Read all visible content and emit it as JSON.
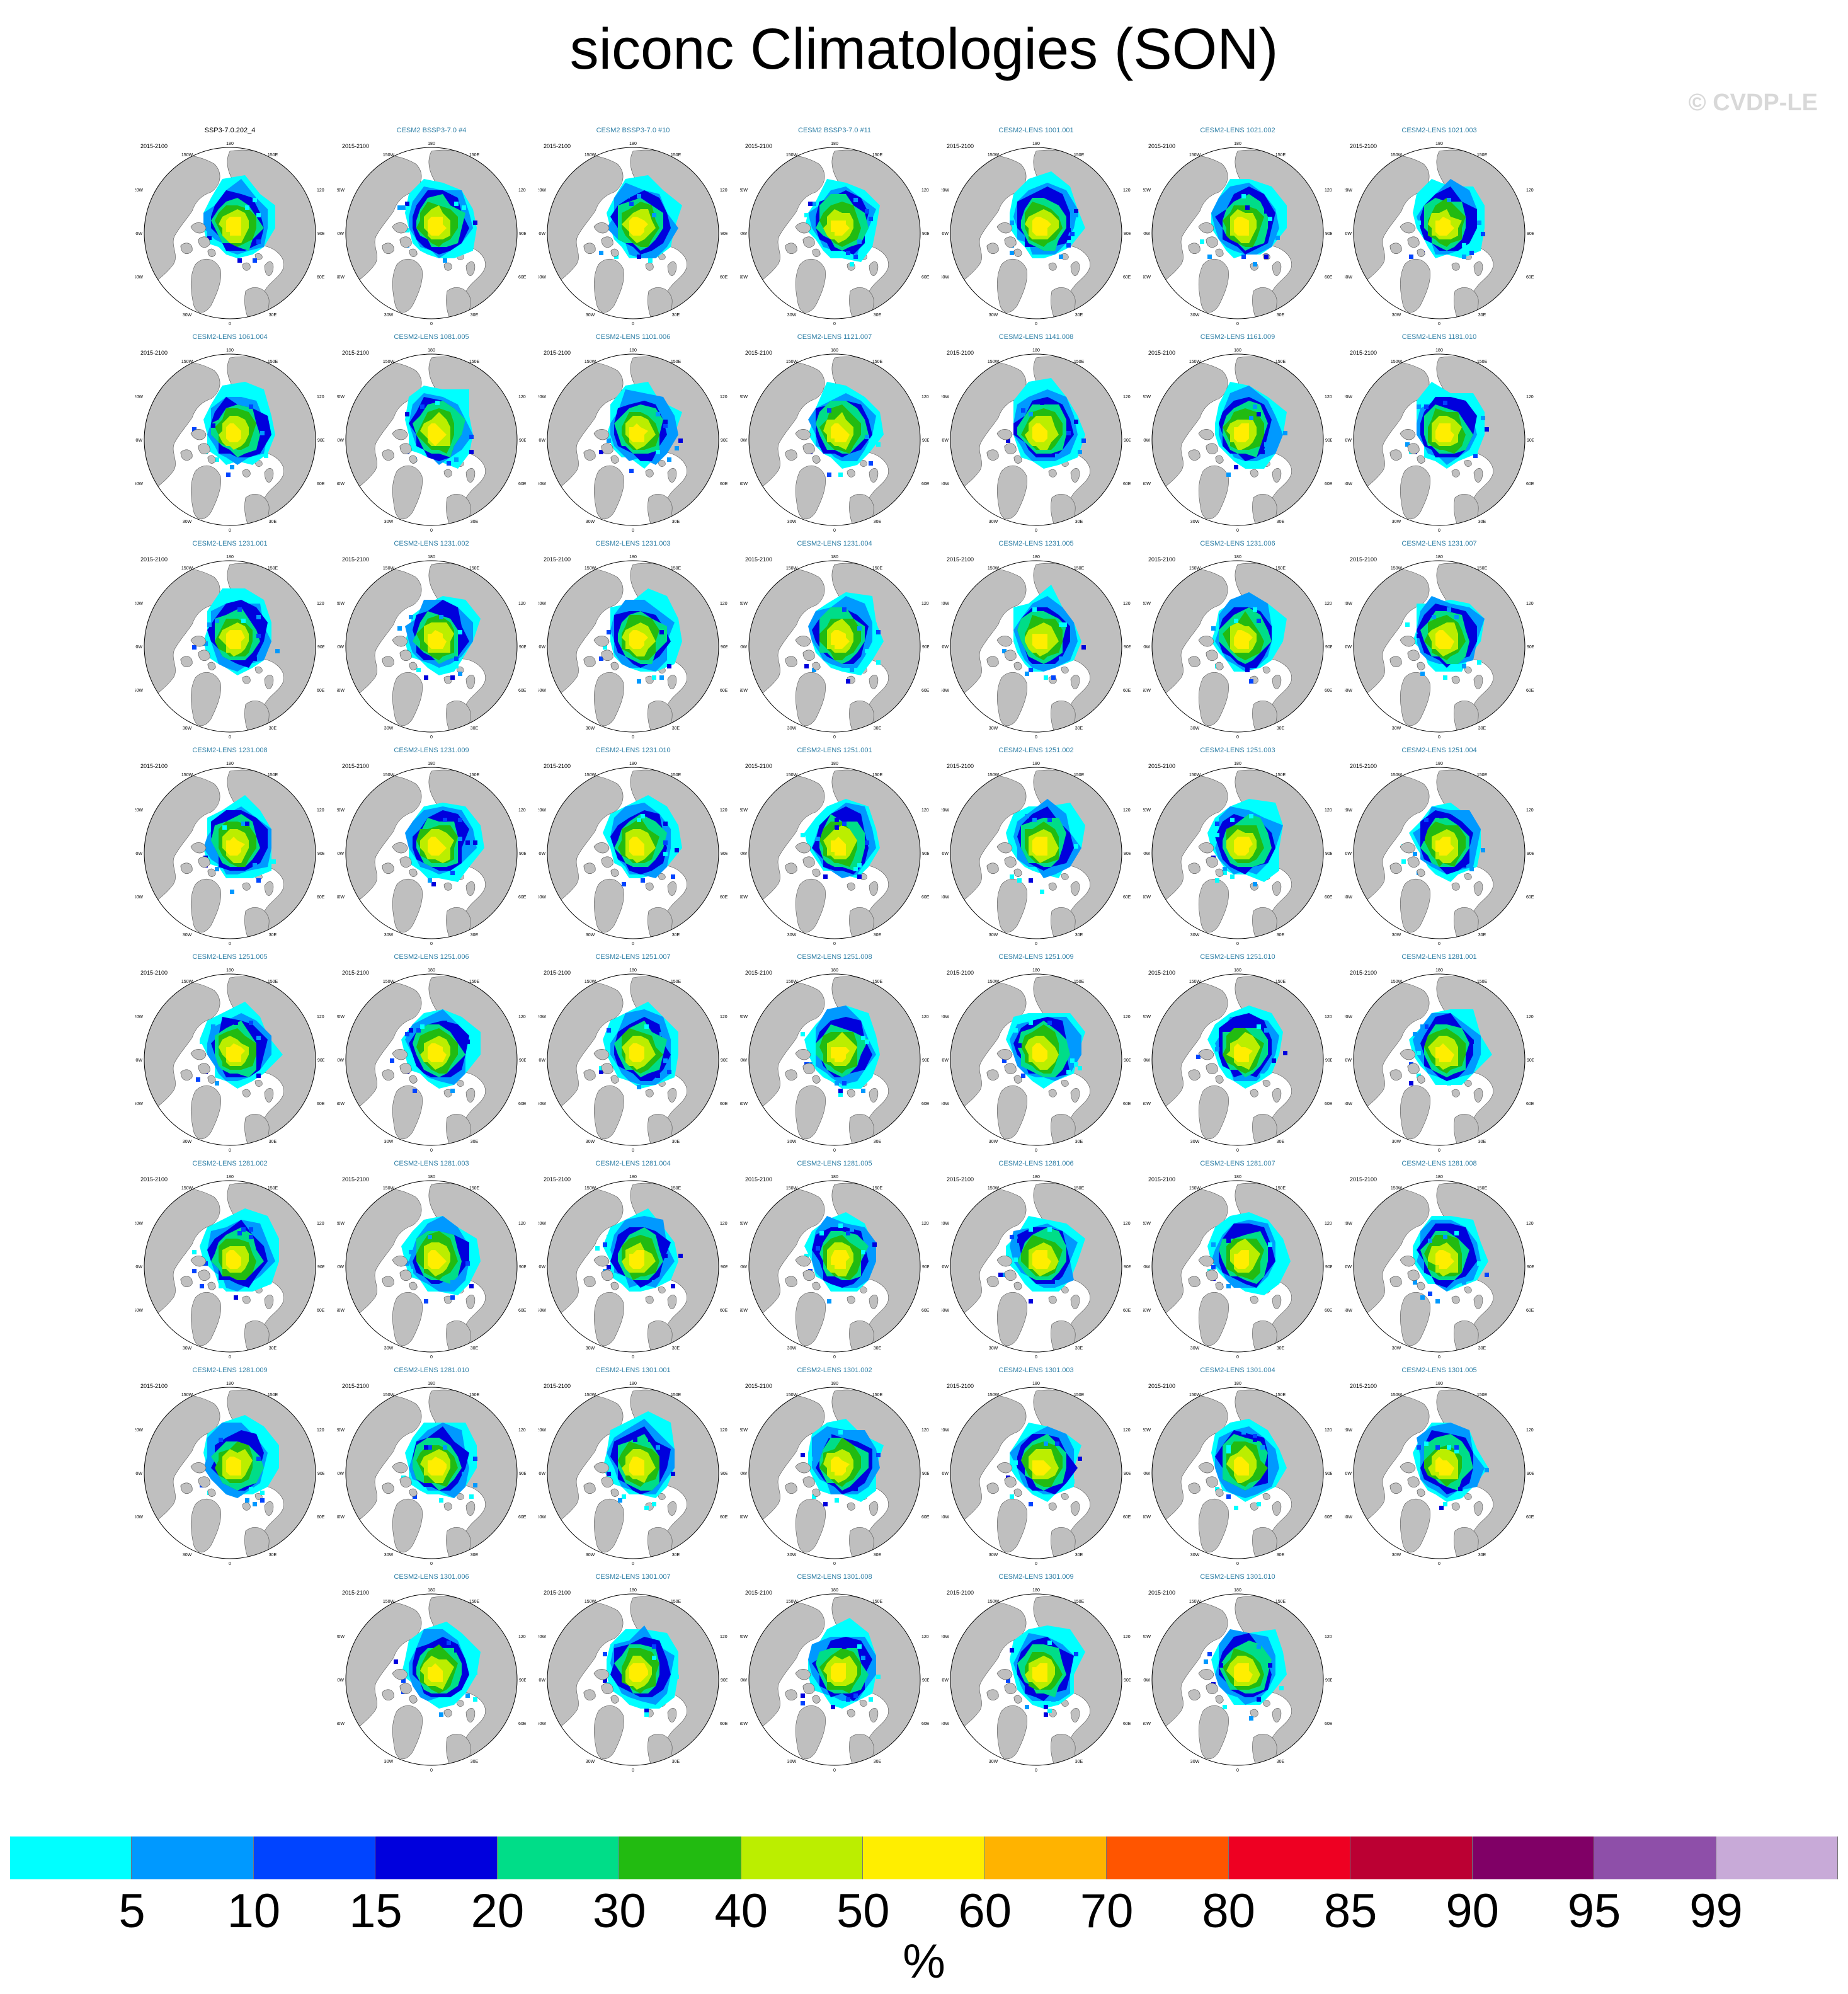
{
  "figure": {
    "title": "siconc Climatologies (SON)",
    "watermark": "© CVDP-LE",
    "period": "2015-2100"
  },
  "map_labels": {
    "top": "180",
    "bottom": "0",
    "upper_left": "150W",
    "upper_right": "150E",
    "left_upper": "120W",
    "right_upper": "120E",
    "left": "90W",
    "right": "90E",
    "left_lower": "60W",
    "right_lower": "60E",
    "lower_left": "30W",
    "lower_right": "30E"
  },
  "panels": [
    {
      "title": "SSP3-7.0.202_4",
      "obs": true
    },
    {
      "title": "CESM2 BSSP3-7.0 #4"
    },
    {
      "title": "CESM2 BSSP3-7.0 #10"
    },
    {
      "title": "CESM2 BSSP3-7.0 #11"
    },
    {
      "title": "CESM2-LENS 1001.001"
    },
    {
      "title": "CESM2-LENS 1021.002"
    },
    {
      "title": "CESM2-LENS 1021.003"
    },
    {
      "title": "CESM2-LENS 1061.004"
    },
    {
      "title": "CESM2-LENS 1081.005"
    },
    {
      "title": "CESM2-LENS 1101.006"
    },
    {
      "title": "CESM2-LENS 1121.007"
    },
    {
      "title": "CESM2-LENS 1141.008"
    },
    {
      "title": "CESM2-LENS 1161.009"
    },
    {
      "title": "CESM2-LENS 1181.010"
    },
    {
      "title": "CESM2-LENS 1231.001"
    },
    {
      "title": "CESM2-LENS 1231.002"
    },
    {
      "title": "CESM2-LENS 1231.003"
    },
    {
      "title": "CESM2-LENS 1231.004"
    },
    {
      "title": "CESM2-LENS 1231.005"
    },
    {
      "title": "CESM2-LENS 1231.006"
    },
    {
      "title": "CESM2-LENS 1231.007"
    },
    {
      "title": "CESM2-LENS 1231.008"
    },
    {
      "title": "CESM2-LENS 1231.009"
    },
    {
      "title": "CESM2-LENS 1231.010"
    },
    {
      "title": "CESM2-LENS 1251.001"
    },
    {
      "title": "CESM2-LENS 1251.002"
    },
    {
      "title": "CESM2-LENS 1251.003"
    },
    {
      "title": "CESM2-LENS 1251.004"
    },
    {
      "title": "CESM2-LENS 1251.005"
    },
    {
      "title": "CESM2-LENS 1251.006"
    },
    {
      "title": "CESM2-LENS 1251.007"
    },
    {
      "title": "CESM2-LENS 1251.008"
    },
    {
      "title": "CESM2-LENS 1251.009"
    },
    {
      "title": "CESM2-LENS 1251.010"
    },
    {
      "title": "CESM2-LENS 1281.001"
    },
    {
      "title": "CESM2-LENS 1281.002"
    },
    {
      "title": "CESM2-LENS 1281.003"
    },
    {
      "title": "CESM2-LENS 1281.004"
    },
    {
      "title": "CESM2-LENS 1281.005"
    },
    {
      "title": "CESM2-LENS 1281.006"
    },
    {
      "title": "CESM2-LENS 1281.007"
    },
    {
      "title": "CESM2-LENS 1281.008"
    },
    {
      "title": "CESM2-LENS 1281.009"
    },
    {
      "title": "CESM2-LENS 1281.010"
    },
    {
      "title": "CESM2-LENS 1301.001"
    },
    {
      "title": "CESM2-LENS 1301.002"
    },
    {
      "title": "CESM2-LENS 1301.003"
    },
    {
      "title": "CESM2-LENS 1301.004"
    },
    {
      "title": "CESM2-LENS 1301.005"
    },
    {
      "title": "CESM2-LENS 1301.006"
    },
    {
      "title": "CESM2-LENS 1301.007"
    },
    {
      "title": "CESM2-LENS 1301.008"
    },
    {
      "title": "CESM2-LENS 1301.009"
    },
    {
      "title": "CESM2-LENS 1301.010"
    }
  ],
  "colorbar": {
    "labels": [
      "5",
      "10",
      "15",
      "20",
      "30",
      "40",
      "50",
      "60",
      "70",
      "80",
      "85",
      "90",
      "95",
      "99"
    ],
    "colors": [
      "#00ffff",
      "#0099ff",
      "#0044ff",
      "#0000dd",
      "#00dd88",
      "#22bb11",
      "#bbee00",
      "#ffee00",
      "#ffb300",
      "#ff5500",
      "#ee0022",
      "#bb0033",
      "#800066",
      "#8e4fa9",
      "#c8aad8"
    ],
    "units": "%"
  },
  "colors": {
    "land": "#bfbfbf",
    "ocean": "#ffffff",
    "title_model": "#2e7fa6",
    "title_obs": "#000000"
  }
}
